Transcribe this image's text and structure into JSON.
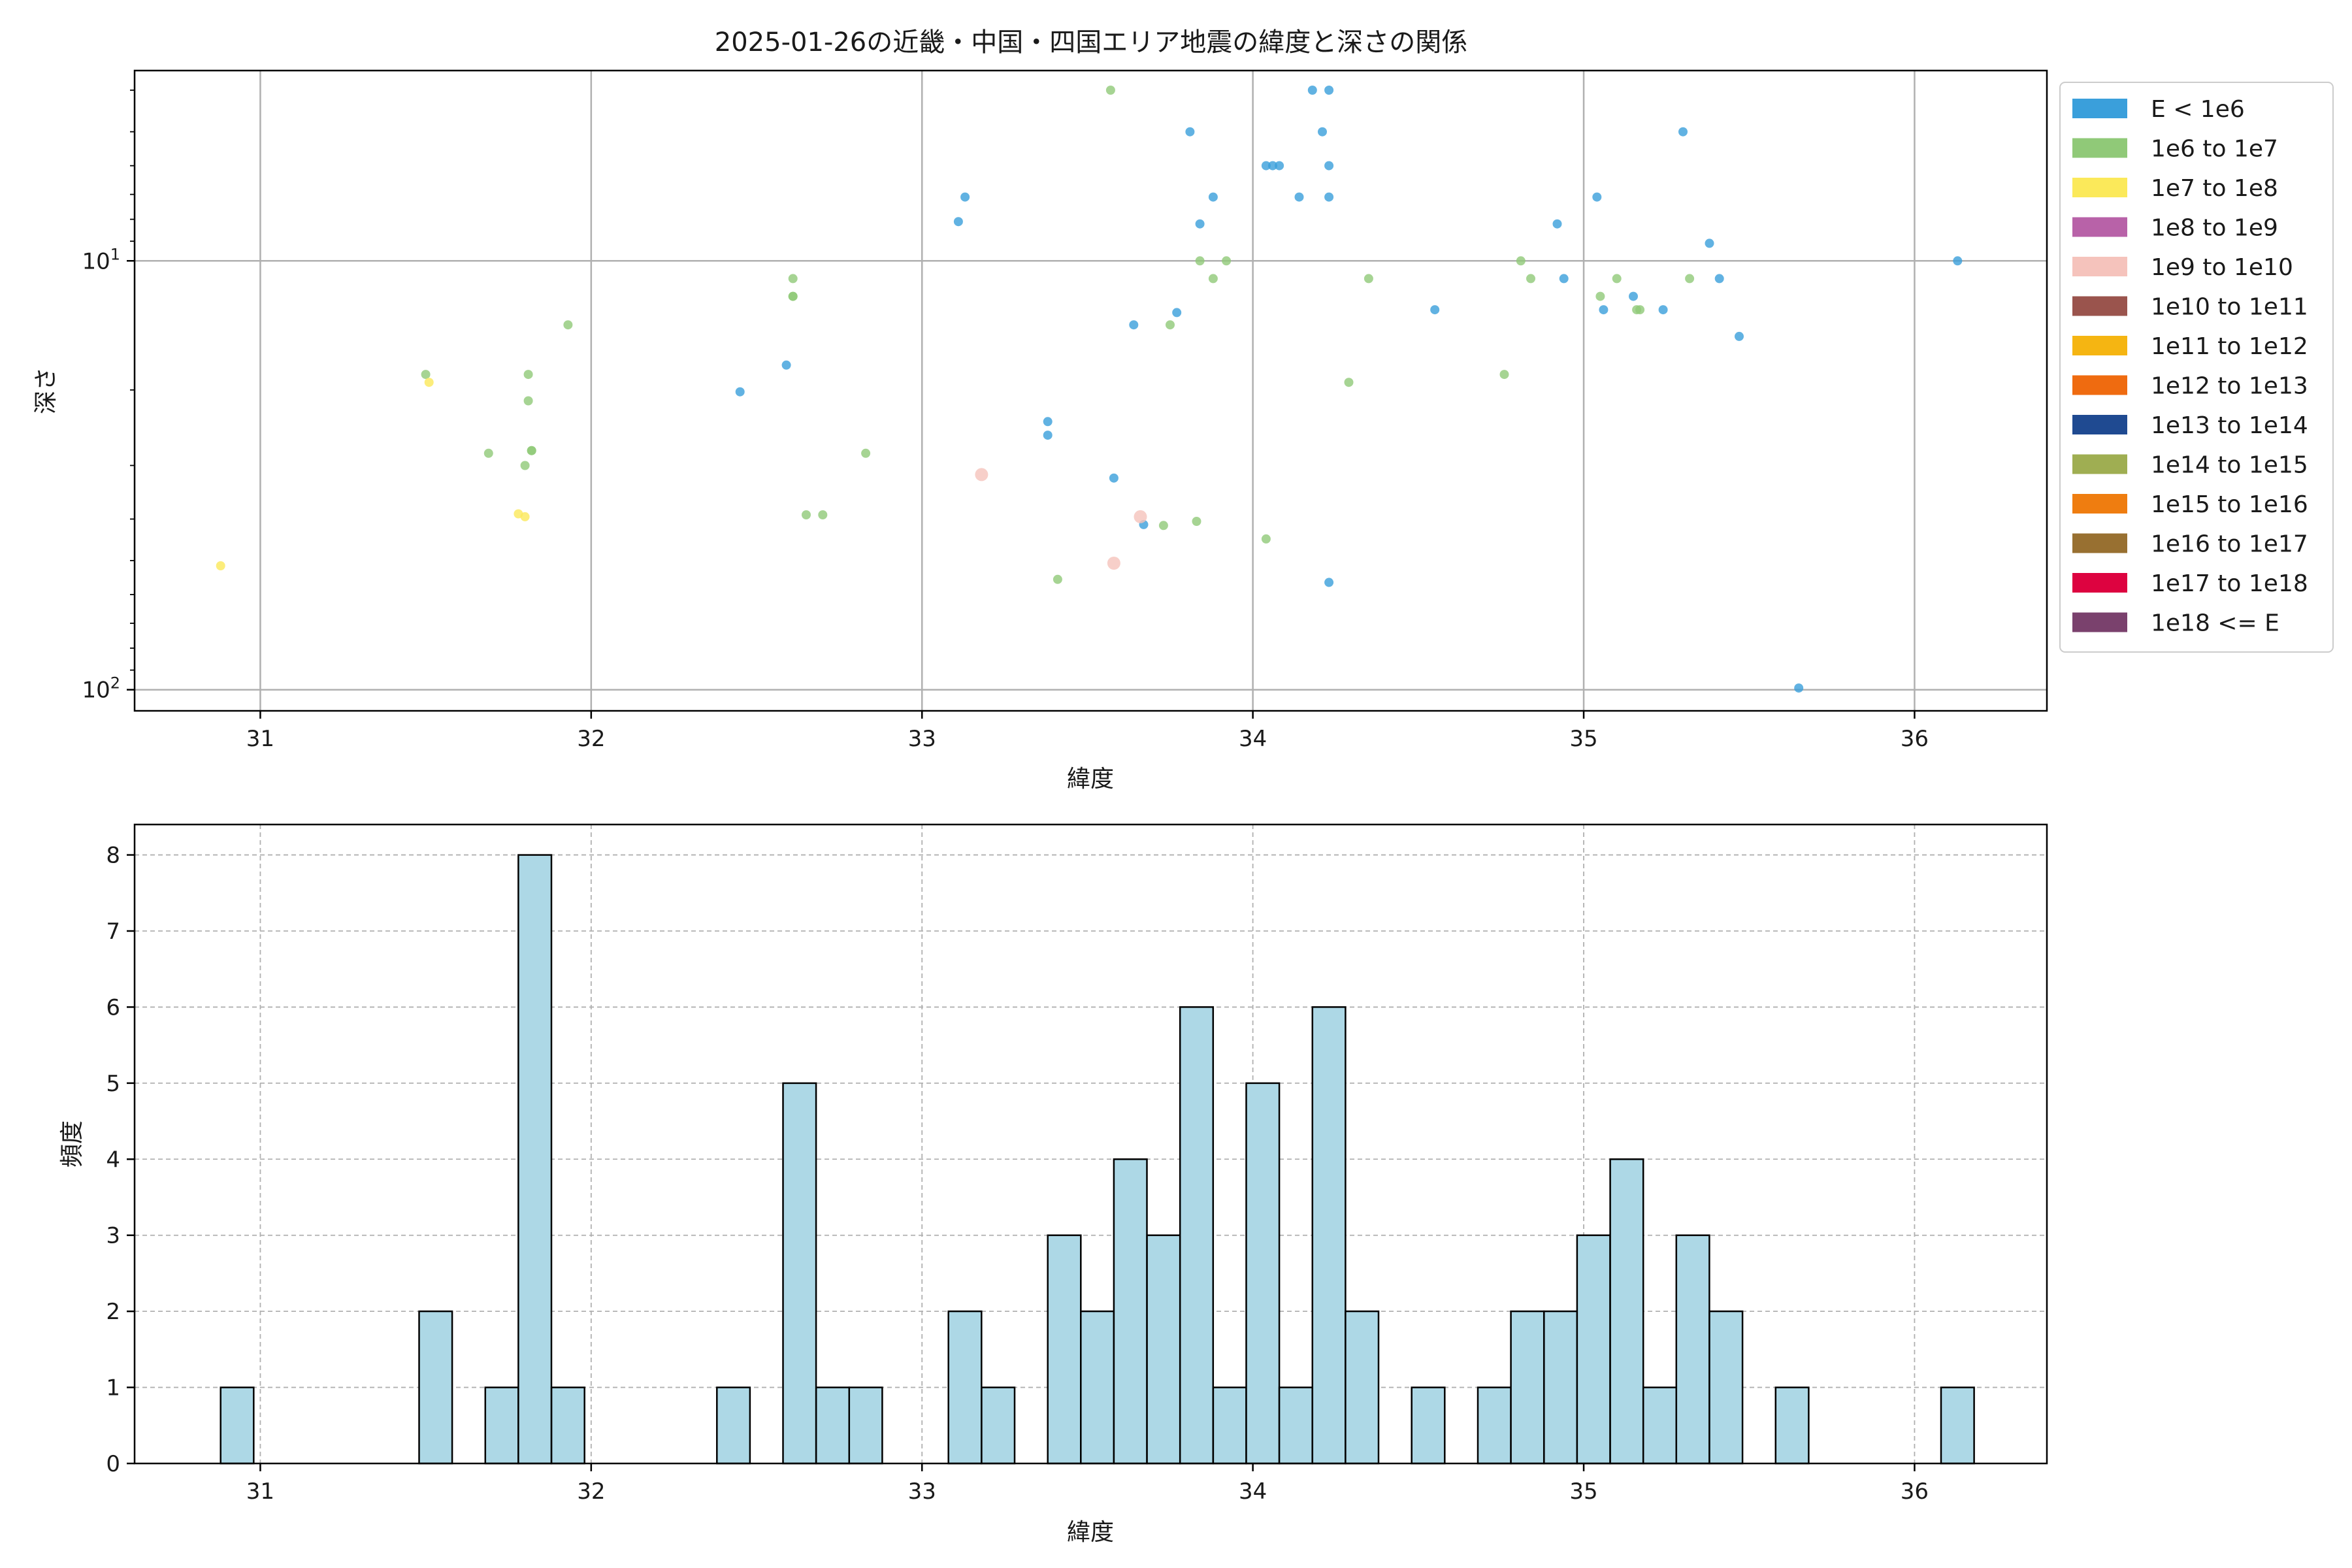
{
  "chart_data": [
    {
      "type": "scatter",
      "title": "2025-01-26の近畿・中国・四国エリア地震の緯度と深さの関係",
      "xlabel": "緯度",
      "ylabel": "深さ",
      "xlim": [
        30.62,
        36.4
      ],
      "ylim": [
        112,
        3.6
      ],
      "yscale": "log",
      "y_inverted": true,
      "xticks": [
        "31",
        "32",
        "33",
        "34",
        "35",
        "36"
      ],
      "yticks": [
        {
          "value": 10,
          "base": "10",
          "exp": "1"
        },
        {
          "value": 100,
          "base": "10",
          "exp": "2"
        }
      ],
      "grid": true,
      "legend_position": "outside-right",
      "series": [
        {
          "name": "E < 1e6",
          "color": "#3a9fdb",
          "points": [
            [
              32.45,
              20.2
            ],
            [
              32.59,
              17.5
            ],
            [
              33.11,
              8.1
            ],
            [
              33.13,
              7.1
            ],
            [
              33.38,
              23.7
            ],
            [
              33.38,
              25.5
            ],
            [
              33.58,
              32.1
            ],
            [
              33.64,
              14.1
            ],
            [
              33.67,
              41.2
            ],
            [
              33.77,
              13.2
            ],
            [
              33.81,
              5.0
            ],
            [
              33.84,
              8.2
            ],
            [
              33.88,
              7.1
            ],
            [
              34.04,
              6.0
            ],
            [
              34.06,
              6.0
            ],
            [
              34.08,
              6.0
            ],
            [
              34.14,
              7.1
            ],
            [
              34.18,
              4.0
            ],
            [
              34.21,
              5.0
            ],
            [
              34.23,
              4.0
            ],
            [
              34.23,
              6.0
            ],
            [
              34.23,
              7.1
            ],
            [
              34.23,
              56.2
            ],
            [
              34.55,
              13.0
            ],
            [
              34.92,
              8.2
            ],
            [
              34.94,
              11.0
            ],
            [
              35.04,
              7.1
            ],
            [
              35.06,
              13.0
            ],
            [
              35.15,
              12.1
            ],
            [
              35.24,
              13.0
            ],
            [
              35.3,
              5.0
            ],
            [
              35.38,
              9.1
            ],
            [
              35.41,
              11.0
            ],
            [
              35.47,
              15.0
            ],
            [
              35.65,
              99.1
            ],
            [
              36.13,
              10.0
            ]
          ]
        },
        {
          "name": "1e6 to 1e7",
          "color": "#90c978",
          "points": [
            [
              31.5,
              18.4
            ],
            [
              31.69,
              28.1
            ],
            [
              31.8,
              30.0
            ],
            [
              31.81,
              18.4
            ],
            [
              31.81,
              21.2
            ],
            [
              31.82,
              27.7
            ],
            [
              31.82,
              27.7
            ],
            [
              31.93,
              14.1
            ],
            [
              32.61,
              11.0
            ],
            [
              32.61,
              12.1
            ],
            [
              32.61,
              12.1
            ],
            [
              32.65,
              39.1
            ],
            [
              32.7,
              39.1
            ],
            [
              32.83,
              28.1
            ],
            [
              33.41,
              55.3
            ],
            [
              33.57,
              4.0
            ],
            [
              33.73,
              41.4
            ],
            [
              33.75,
              14.1
            ],
            [
              33.83,
              40.5
            ],
            [
              33.84,
              10.0
            ],
            [
              33.88,
              11.0
            ],
            [
              33.92,
              10.0
            ],
            [
              34.04,
              44.5
            ],
            [
              34.29,
              19.2
            ],
            [
              34.35,
              11.0
            ],
            [
              34.76,
              18.4
            ],
            [
              34.81,
              10.0
            ],
            [
              34.84,
              11.0
            ],
            [
              35.05,
              12.1
            ],
            [
              35.1,
              11.0
            ],
            [
              35.16,
              13.0
            ],
            [
              35.17,
              13.0
            ],
            [
              35.32,
              11.0
            ]
          ]
        },
        {
          "name": "1e7 to 1e8",
          "color": "#fbe95a",
          "points": [
            [
              30.88,
              51.4
            ],
            [
              31.51,
              19.2
            ],
            [
              31.78,
              38.9
            ],
            [
              31.8,
              39.5
            ]
          ]
        },
        {
          "name": "1e8 to 1e9",
          "color": "#b862a8",
          "points": []
        },
        {
          "name": "1e9 to 1e10",
          "color": "#f5c3bc",
          "points": [
            [
              33.18,
              31.5
            ],
            [
              33.58,
              50.7
            ],
            [
              33.66,
              39.5
            ]
          ]
        },
        {
          "name": "1e10 to 1e11",
          "color": "#9a544d",
          "points": []
        },
        {
          "name": "1e11 to 1e12",
          "color": "#f5b512",
          "points": []
        },
        {
          "name": "1e12 to 1e13",
          "color": "#ef6b10",
          "points": []
        },
        {
          "name": "1e13 to 1e14",
          "color": "#1f4a91",
          "points": []
        },
        {
          "name": "1e14 to 1e15",
          "color": "#9fae52",
          "points": []
        },
        {
          "name": "1e15 to 1e16",
          "color": "#ef7d10",
          "points": []
        },
        {
          "name": "1e16 to 1e17",
          "color": "#987031",
          "points": []
        },
        {
          "name": "1e17 to 1e18",
          "color": "#dd0340",
          "points": []
        },
        {
          "name": "1e18 <= E",
          "color": "#7a416d",
          "points": []
        }
      ]
    },
    {
      "type": "bar",
      "xlabel": "緯度",
      "ylabel": "頻度",
      "xlim": [
        30.62,
        36.4
      ],
      "ylim": [
        0,
        8.4
      ],
      "xticks": [
        "31",
        "32",
        "33",
        "34",
        "35",
        "36"
      ],
      "yticks": [
        "0",
        "1",
        "2",
        "3",
        "4",
        "5",
        "6",
        "7",
        "8"
      ],
      "grid": true,
      "bar_color": "#add8e6",
      "edge_color": "#000000",
      "bin_width": 0.1,
      "bins": [
        {
          "left": 30.88,
          "count": 1
        },
        {
          "left": 31.48,
          "count": 2
        },
        {
          "left": 31.68,
          "count": 1
        },
        {
          "left": 31.78,
          "count": 8
        },
        {
          "left": 31.88,
          "count": 1
        },
        {
          "left": 32.38,
          "count": 1
        },
        {
          "left": 32.58,
          "count": 5
        },
        {
          "left": 32.68,
          "count": 1
        },
        {
          "left": 32.78,
          "count": 1
        },
        {
          "left": 33.08,
          "count": 2
        },
        {
          "left": 33.18,
          "count": 1
        },
        {
          "left": 33.38,
          "count": 3
        },
        {
          "left": 33.48,
          "count": 2
        },
        {
          "left": 33.58,
          "count": 4
        },
        {
          "left": 33.68,
          "count": 3
        },
        {
          "left": 33.78,
          "count": 6
        },
        {
          "left": 33.88,
          "count": 1
        },
        {
          "left": 33.98,
          "count": 5
        },
        {
          "left": 34.08,
          "count": 1
        },
        {
          "left": 34.18,
          "count": 6
        },
        {
          "left": 34.28,
          "count": 2
        },
        {
          "left": 34.48,
          "count": 1
        },
        {
          "left": 34.68,
          "count": 1
        },
        {
          "left": 34.78,
          "count": 2
        },
        {
          "left": 34.88,
          "count": 2
        },
        {
          "left": 34.98,
          "count": 3
        },
        {
          "left": 35.08,
          "count": 4
        },
        {
          "left": 35.18,
          "count": 1
        },
        {
          "left": 35.28,
          "count": 3
        },
        {
          "left": 35.38,
          "count": 2
        },
        {
          "left": 35.58,
          "count": 1
        },
        {
          "left": 36.08,
          "count": 1
        }
      ]
    }
  ]
}
